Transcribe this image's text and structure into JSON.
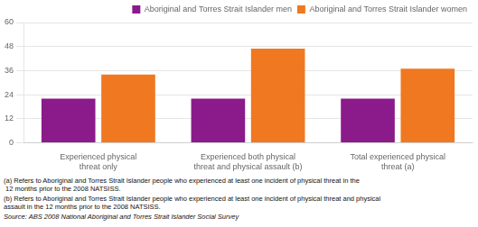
{
  "chart_data": {
    "type": "bar",
    "categories": [
      "Experienced physical\nthreat only",
      "Experienced both physical\nthreat and physical assault (b)",
      "Total experienced physical\nthreat (a)"
    ],
    "series": [
      {
        "name": "Aboriginal and Torres Strait Islander men",
        "color": "#8b1a8b",
        "values": [
          22.0,
          22.0,
          22.0
        ]
      },
      {
        "name": "Aboriginal and Torres Strait Islander women",
        "color": "#f07820",
        "values": [
          34.0,
          47.0,
          37.0
        ]
      }
    ],
    "ylim": [
      0,
      60
    ],
    "yticks": [
      0,
      12,
      24,
      36,
      48,
      60
    ],
    "grid": true,
    "legend": "upper right",
    "annotations": [
      "(a) Refers to Aboriginal and Torres Strait Islander people who experienced at least one incident of physical threat in the\n 12 months prior to the 2008 NATSISS.",
      "(b) Refers to Aboriginal and Torres Strait Islander people who experienced at least one incident of physical threat and physical\nassault in the 12 months prior to the 2008 NATSISS.",
      "Source: ABS 2008 National Aboriginal and Torres Strait Islander Social Survey"
    ]
  }
}
